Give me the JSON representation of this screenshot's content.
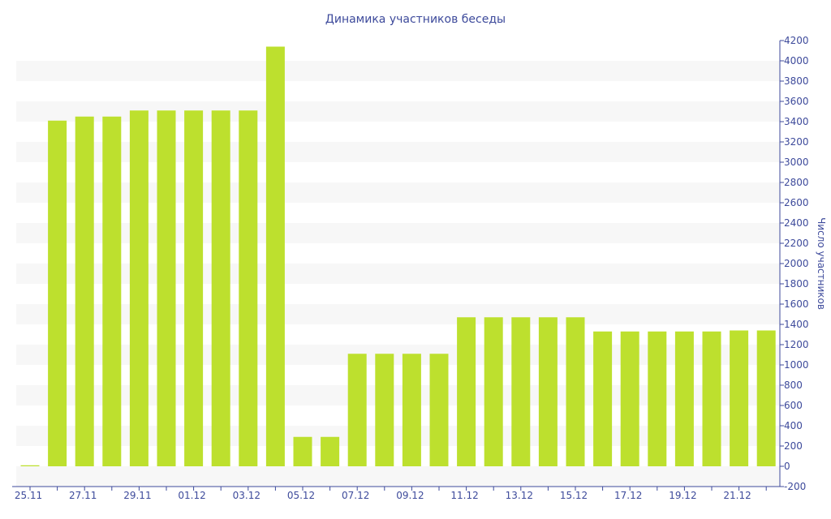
{
  "chart_data": {
    "type": "bar",
    "title": "Динамика участников беседы",
    "ylabel": "Число участников",
    "xlabel": "",
    "ylim": [
      -200,
      4200
    ],
    "yticks": [
      -200,
      0,
      200,
      400,
      600,
      800,
      1000,
      1200,
      1400,
      1600,
      1800,
      2000,
      2200,
      2400,
      2600,
      2800,
      3000,
      3200,
      3400,
      3600,
      3800,
      4000,
      4200
    ],
    "y_axis_position": "right",
    "grid": "alternating horizontal bands",
    "colors": {
      "bar": "#bde02e",
      "text": "#3d4a9b",
      "band": "#f7f7f7"
    },
    "categories": [
      "25.11",
      "26.11",
      "27.11",
      "28.11",
      "29.11",
      "30.11",
      "01.12",
      "02.12",
      "03.12",
      "04.12",
      "05.12",
      "06.12",
      "07.12",
      "08.12",
      "09.12",
      "10.12",
      "11.12",
      "12.12",
      "13.12",
      "14.12",
      "15.12",
      "16.12",
      "17.12",
      "18.12",
      "19.12",
      "20.12",
      "21.12",
      "22.12"
    ],
    "xtick_labels": [
      "25.11",
      "27.11",
      "29.11",
      "01.12",
      "03.12",
      "05.12",
      "07.12",
      "09.12",
      "11.12",
      "13.12",
      "15.12",
      "17.12",
      "19.12",
      "21.12"
    ],
    "values": [
      10,
      3410,
      3450,
      3450,
      3510,
      3510,
      3510,
      3510,
      3510,
      4140,
      290,
      290,
      1110,
      1110,
      1110,
      1110,
      1470,
      1470,
      1470,
      1470,
      1470,
      1330,
      1330,
      1330,
      1330,
      1330,
      1340,
      1340
    ]
  }
}
